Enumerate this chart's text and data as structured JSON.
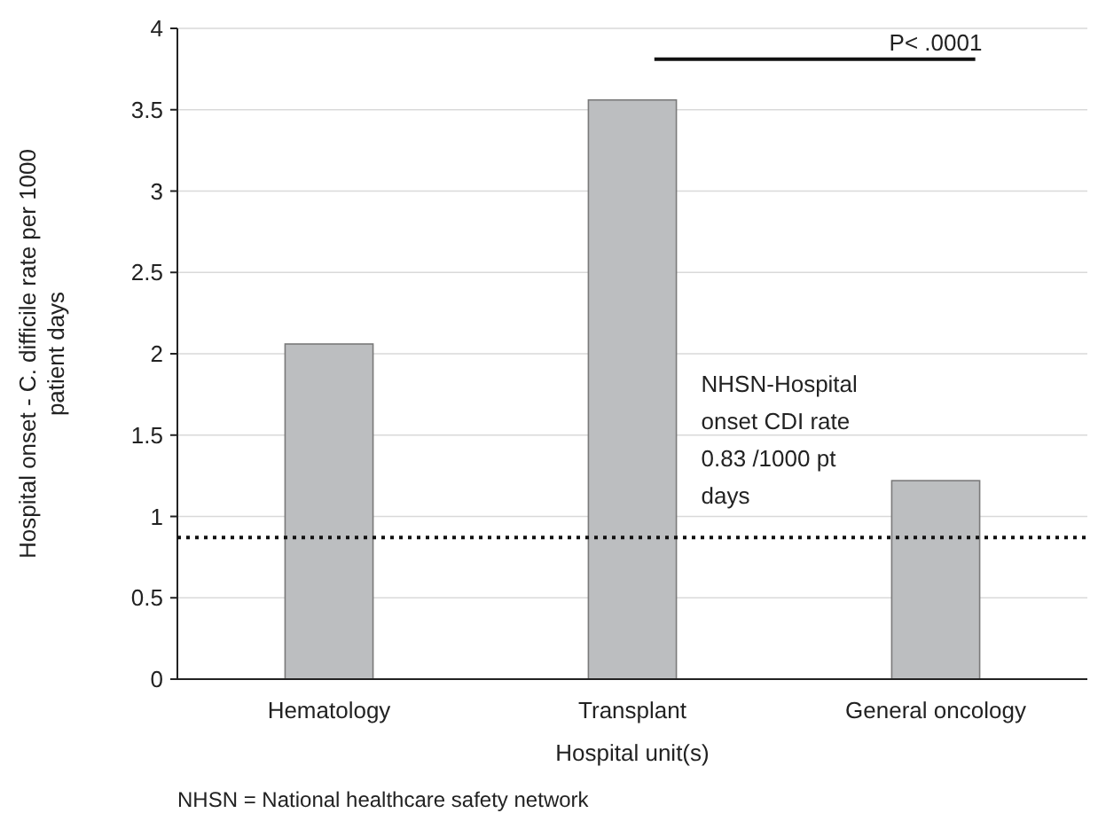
{
  "chart_data": {
    "type": "bar",
    "xlabel": "Hospital unit(s)",
    "ylabel": "Hospital onset - C. difficile rate per 1000 patient days",
    "categories": [
      "Hematology",
      "Transplant",
      "General oncology"
    ],
    "values": [
      2.06,
      3.56,
      1.22
    ],
    "color": "#bcbec0",
    "ylim": [
      0,
      4
    ],
    "yticks": [
      0,
      0.5,
      1,
      1.5,
      2,
      2.5,
      3,
      3.5,
      4
    ],
    "grid": "y",
    "ref_lines": [
      {
        "axis": "y",
        "value": 0.87,
        "label": "NHSN-Hospital onset CDI rate 0.83 /1000 pt days",
        "color": "#111111",
        "line_style": "dotted"
      }
    ],
    "annotations": [
      "P< .0001",
      "NHSN = National healthcare safety network"
    ]
  }
}
